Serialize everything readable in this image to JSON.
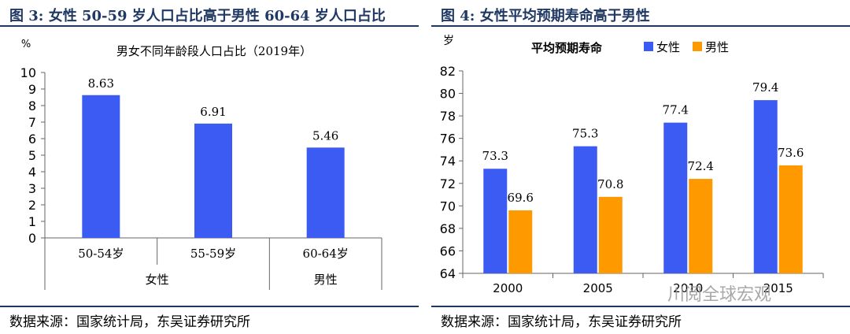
{
  "left_panel": {
    "figure_title": "图 3: 女性 50-59 岁人口占比高于男性 60-64 岁人口占比",
    "source": "数据来源：国家统计局，东吴证券研究所"
  },
  "right_panel": {
    "figure_title": "图 4:  女性平均预期寿命高于男性",
    "source": "数据来源：国家统计局，东吴证券研究所",
    "watermark": "川阅全球宏观"
  },
  "chart_data": [
    {
      "type": "bar",
      "title": "男女不同年龄段人口占比（2019年）",
      "ylabel": "%",
      "ylim": [
        0,
        10
      ],
      "yticks": [
        0,
        1,
        2,
        3,
        4,
        5,
        6,
        7,
        8,
        9,
        10
      ],
      "categories": [
        "50-54岁",
        "55-59岁",
        "60-64岁"
      ],
      "groups": [
        {
          "label": "女性",
          "categories": [
            "50-54岁",
            "55-59岁"
          ]
        },
        {
          "label": "男性",
          "categories": [
            "60-64岁"
          ]
        }
      ],
      "values": [
        8.63,
        6.91,
        5.46
      ],
      "data_labels": [
        "8.63",
        "6.91",
        "5.46"
      ],
      "color": "#3b5bf2",
      "grid": false
    },
    {
      "type": "bar",
      "title": "平均预期寿命",
      "ylabel": "岁",
      "ylim": [
        64,
        82
      ],
      "yticks": [
        64,
        66,
        68,
        70,
        72,
        74,
        76,
        78,
        80,
        82
      ],
      "categories": [
        "2000",
        "2005",
        "2010",
        "2015"
      ],
      "series": [
        {
          "name": "女性",
          "color": "#3b5bf2",
          "values": [
            73.3,
            75.3,
            77.4,
            79.4
          ],
          "labels": [
            "73.3",
            "75.3",
            "77.4",
            "79.4"
          ]
        },
        {
          "name": "男性",
          "color": "#ff9900",
          "values": [
            69.6,
            70.8,
            72.4,
            73.6
          ],
          "labels": [
            "69.6",
            "70.8",
            "72.4",
            "73.6"
          ]
        }
      ],
      "legend": "top",
      "grid": false
    }
  ]
}
